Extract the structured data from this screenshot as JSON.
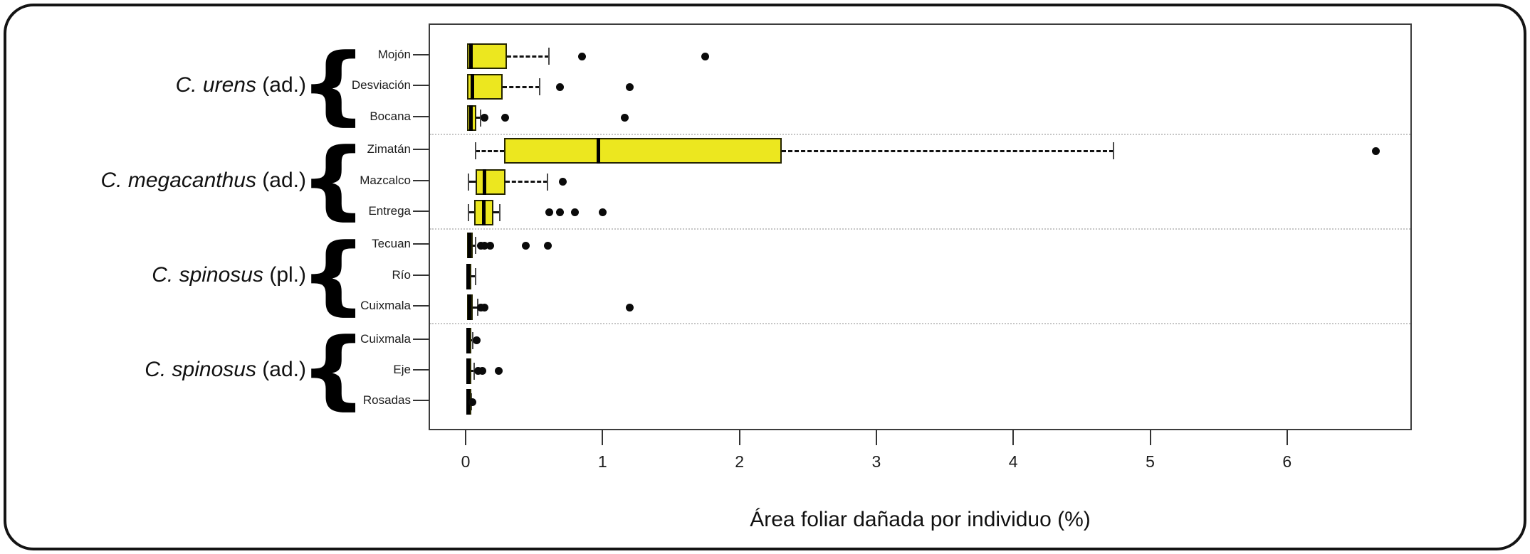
{
  "figure": {
    "background": "#ffffff",
    "frame_color": "#141414",
    "box_fill_color": "#ECE71F",
    "box_border_color": "#252500",
    "median_color": "#000000",
    "separator_color": "#c6c6c6"
  },
  "chart_data": {
    "type": "boxplot-horizontal",
    "title": "",
    "xlabel": "Área foliar dañada por individuo (%)",
    "ylabel": "",
    "xlim": [
      -0.27,
      6.91
    ],
    "xticks": [
      "0",
      "1",
      "2",
      "3",
      "4",
      "5",
      "6"
    ],
    "grid": false,
    "legend": "none",
    "group_separators": "dotted lines between species groups",
    "groups": [
      {
        "species": "C. urens",
        "stage": "(ad.)",
        "sites": [
          {
            "label": "Mojón",
            "whisker_lo": 0.0,
            "q1": 0.0,
            "median": 0.03,
            "q3": 0.29,
            "whisker_hi": 0.6,
            "outliers": [
              0.84,
              1.74
            ]
          },
          {
            "label": "Desviación",
            "whisker_lo": 0.0,
            "q1": 0.0,
            "median": 0.04,
            "q3": 0.26,
            "whisker_hi": 0.53,
            "outliers": [
              0.68,
              1.19
            ]
          },
          {
            "label": "Bocana",
            "whisker_lo": 0.0,
            "q1": 0.0,
            "median": 0.03,
            "q3": 0.07,
            "whisker_hi": 0.1,
            "outliers": [
              0.13,
              0.28,
              1.15
            ]
          }
        ]
      },
      {
        "species": "C. megacanthus",
        "stage": "(ad.)",
        "sites": [
          {
            "label": "Zimatán",
            "whisker_lo": 0.06,
            "q1": 0.27,
            "median": 0.96,
            "q3": 2.3,
            "whisker_hi": 4.72,
            "outliers": [
              6.64
            ]
          },
          {
            "label": "Mazcalco",
            "whisker_lo": 0.01,
            "q1": 0.06,
            "median": 0.13,
            "q3": 0.28,
            "whisker_hi": 0.59,
            "outliers": [
              0.7
            ]
          },
          {
            "label": "Entrega",
            "whisker_lo": 0.01,
            "q1": 0.05,
            "median": 0.12,
            "q3": 0.19,
            "whisker_hi": 0.24,
            "outliers": [
              0.6,
              0.68,
              0.79,
              0.99
            ]
          }
        ]
      },
      {
        "species": "C. spinosus",
        "stage": "(pl.)",
        "sites": [
          {
            "label": "Tecuan",
            "whisker_lo": 0.0,
            "q1": 0.0,
            "median": 0.02,
            "q3": 0.04,
            "whisker_hi": 0.06,
            "outliers": [
              0.1,
              0.13,
              0.17,
              0.43,
              0.59
            ]
          },
          {
            "label": "Río",
            "whisker_lo": 0.0,
            "q1": 0.0,
            "median": 0.01,
            "q3": 0.03,
            "whisker_hi": 0.06,
            "outliers": []
          },
          {
            "label": "Cuixmala",
            "whisker_lo": 0.0,
            "q1": 0.0,
            "median": 0.02,
            "q3": 0.04,
            "whisker_hi": 0.08,
            "outliers": [
              0.1,
              0.13,
              1.19
            ]
          }
        ]
      },
      {
        "species": "C. spinosus",
        "stage": "(ad.)",
        "sites": [
          {
            "label": "Cuixmala",
            "whisker_lo": 0.0,
            "q1": 0.0,
            "median": 0.01,
            "q3": 0.02,
            "whisker_hi": 0.04,
            "outliers": [
              0.07
            ]
          },
          {
            "label": "Eje",
            "whisker_lo": 0.0,
            "q1": 0.0,
            "median": 0.01,
            "q3": 0.03,
            "whisker_hi": 0.05,
            "outliers": [
              0.08,
              0.11,
              0.23
            ]
          },
          {
            "label": "Rosadas",
            "whisker_lo": 0.0,
            "q1": 0.0,
            "median": 0.01,
            "q3": 0.02,
            "whisker_hi": 0.03,
            "outliers": [
              0.04
            ]
          }
        ]
      }
    ]
  }
}
